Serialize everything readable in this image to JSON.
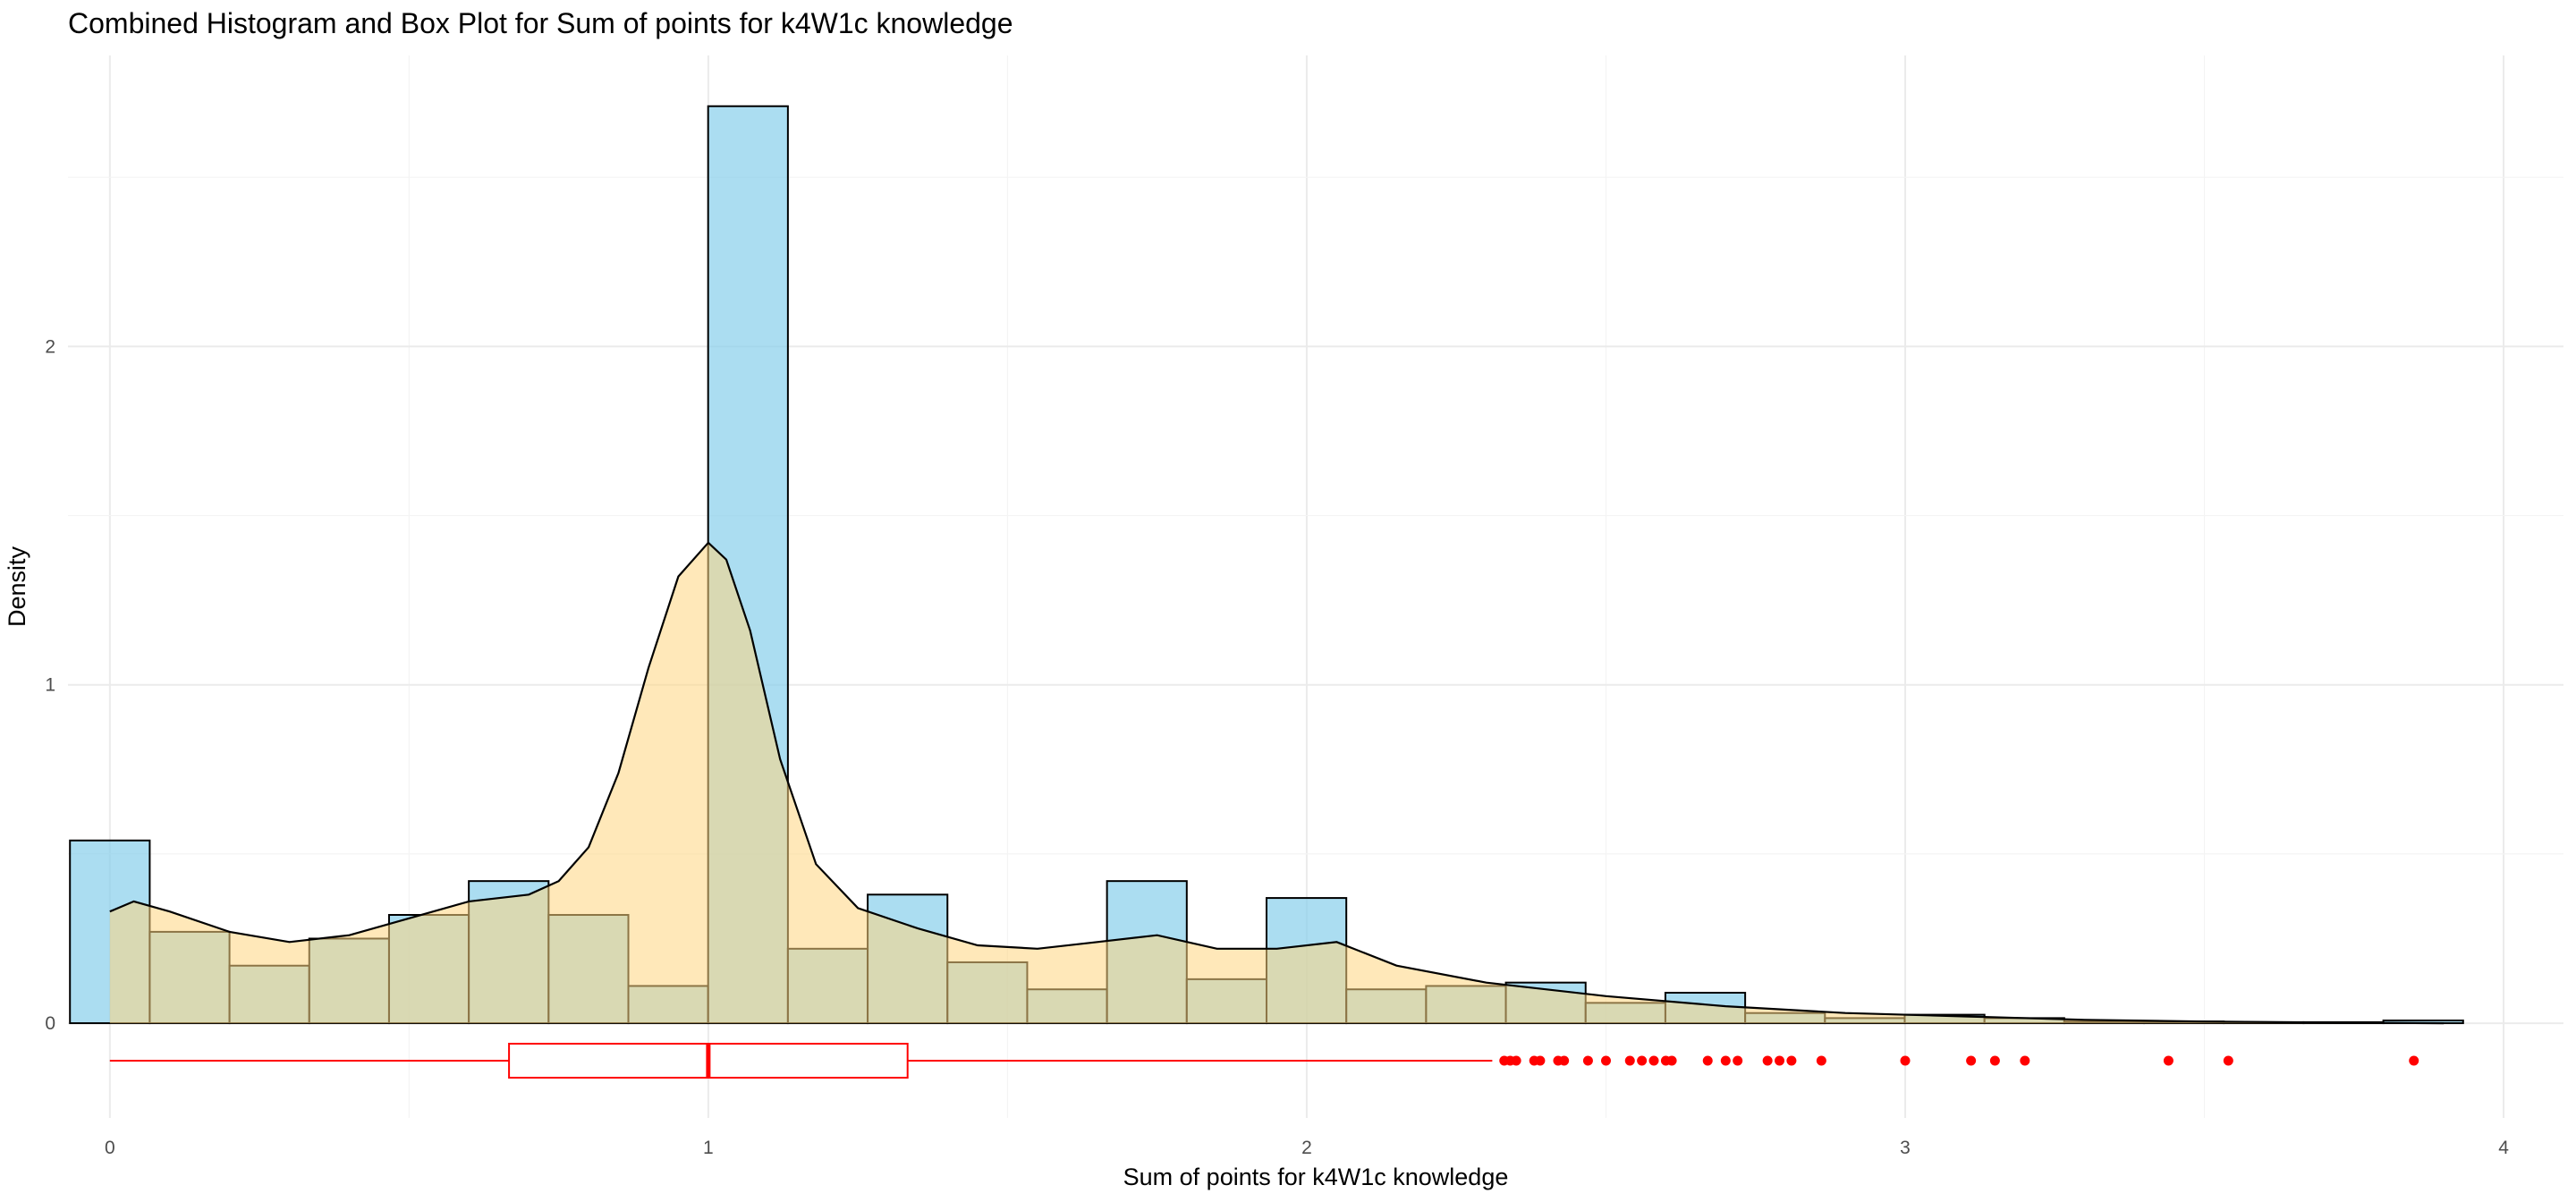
{
  "chart_data": {
    "type": "histogram",
    "title": "Combined Histogram and Box Plot for Sum of points for k4W1c knowledge",
    "xlabel": "Sum of points for k4W1c knowledge",
    "ylabel": "Density",
    "xlim": [
      -0.07,
      4.1
    ],
    "ylim": [
      -0.28,
      2.86
    ],
    "x_ticks": [
      0,
      1,
      2,
      3,
      4
    ],
    "y_ticks": [
      0,
      1,
      2
    ],
    "x_tick_labels": [
      "0",
      "1",
      "2",
      "3",
      "4"
    ],
    "y_tick_labels": [
      "0",
      "1",
      "2"
    ],
    "grid": true,
    "histogram": {
      "bin_width": 0.1333,
      "bin_start": -0.0667,
      "densities": [
        0.54,
        0.27,
        0.17,
        0.25,
        0.32,
        0.42,
        0.32,
        0.11,
        2.71,
        0.22,
        0.38,
        0.18,
        0.1,
        0.42,
        0.13,
        0.37,
        0.1,
        0.11,
        0.12,
        0.06,
        0.09,
        0.03,
        0.015,
        0.025,
        0.015,
        0.005,
        0.005,
        0.003,
        0.003,
        0.008
      ],
      "fill_color": "#87ceeb",
      "outline_color": "#000000"
    },
    "density_curve": {
      "x": [
        0,
        0.04,
        0.1,
        0.2,
        0.3,
        0.4,
        0.5,
        0.6,
        0.7,
        0.75,
        0.8,
        0.85,
        0.9,
        0.95,
        1.0,
        1.03,
        1.07,
        1.12,
        1.18,
        1.25,
        1.35,
        1.45,
        1.55,
        1.65,
        1.75,
        1.85,
        1.95,
        2.05,
        2.15,
        2.3,
        2.5,
        2.7,
        2.9,
        3.1,
        3.3,
        3.5,
        3.7,
        3.9
      ],
      "y": [
        0.33,
        0.36,
        0.33,
        0.27,
        0.24,
        0.26,
        0.31,
        0.36,
        0.38,
        0.42,
        0.52,
        0.74,
        1.05,
        1.32,
        1.42,
        1.37,
        1.16,
        0.78,
        0.47,
        0.34,
        0.28,
        0.23,
        0.22,
        0.24,
        0.26,
        0.22,
        0.22,
        0.24,
        0.17,
        0.12,
        0.08,
        0.05,
        0.03,
        0.02,
        0.01,
        0.005,
        0.002,
        0.0
      ],
      "fill_color": "#ffd580",
      "line_color": "#000000"
    },
    "boxplot": {
      "orientation": "horizontal",
      "whisker_low": 0,
      "q1": 0.667,
      "median": 1,
      "q3": 1.333,
      "whisker_high": 2.31,
      "outliers": [
        2.33,
        2.34,
        2.35,
        2.38,
        2.39,
        2.42,
        2.43,
        2.47,
        2.5,
        2.54,
        2.56,
        2.58,
        2.6,
        2.61,
        2.67,
        2.7,
        2.72,
        2.77,
        2.79,
        2.81,
        2.86,
        3.0,
        3.11,
        3.15,
        3.2,
        3.44,
        3.54,
        3.85
      ],
      "color": "#ff0000"
    }
  }
}
